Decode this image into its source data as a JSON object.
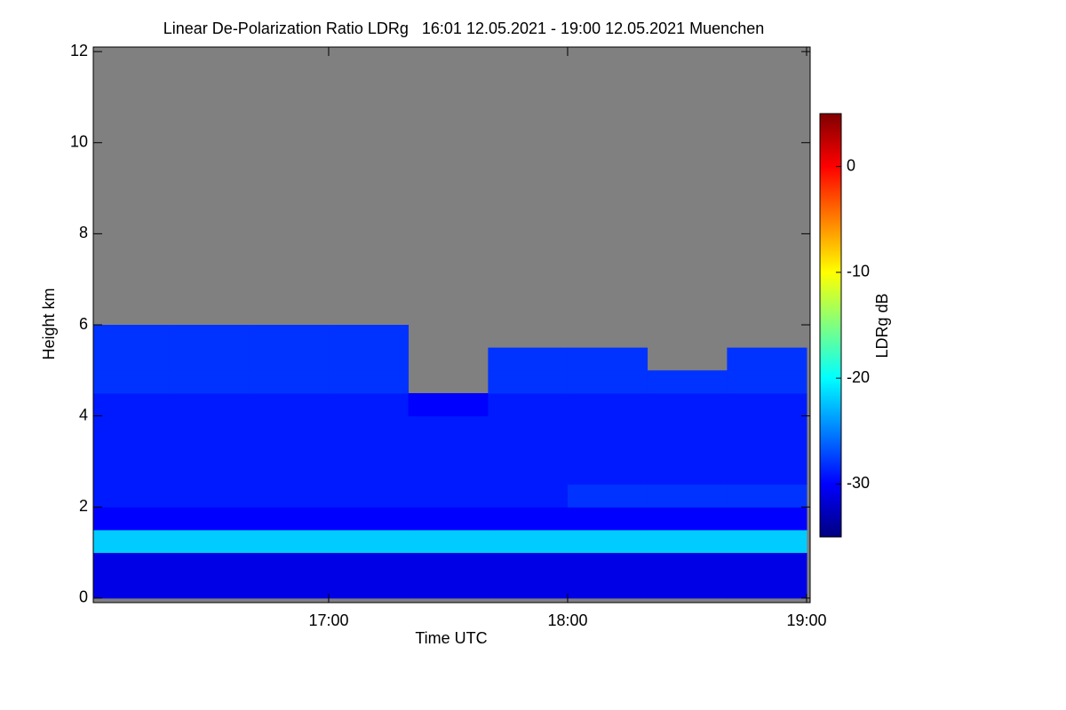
{
  "chart_data": {
    "type": "heatmap",
    "title": "Linear De-Polarization Ratio LDRg   16:01 12.05.2021 - 19:00 12.05.2021 Muenchen",
    "x_label": "Time UTC",
    "y_label": "Height km",
    "colorbar_label": "LDRg dB",
    "colormap": "jet",
    "background": "#808080",
    "x_edges": [
      16.015,
      16.333,
      16.667,
      17.0,
      17.333,
      17.667,
      18.0,
      18.333,
      18.667,
      19.0
    ],
    "y_edges": [
      0,
      0.5,
      1,
      1.5,
      2,
      2.5,
      3,
      3.5,
      4,
      4.5,
      5,
      5.5,
      6
    ],
    "z": [
      [
        -31,
        -31,
        -31,
        -31,
        -31,
        -31,
        -31,
        -31,
        -31
      ],
      [
        -31,
        -31,
        -31,
        -31,
        -31,
        -31,
        -31,
        -31,
        -31
      ],
      [
        -22,
        -22,
        -22,
        -22,
        -22,
        -22,
        -22,
        -22,
        -22
      ],
      [
        -30,
        -30,
        -30,
        -30,
        -30,
        -30,
        -30,
        -30,
        -30
      ],
      [
        -29,
        -29,
        -29,
        -29,
        -29,
        -29,
        -28,
        -28,
        -28
      ],
      [
        -29,
        -29,
        -29,
        -29,
        -29,
        -29,
        -29,
        -29,
        -29
      ],
      [
        -29,
        -29,
        -29,
        -29,
        -29,
        -29,
        -29,
        -29,
        -29
      ],
      [
        -29,
        -29,
        -29,
        -29,
        -29,
        -29,
        -29,
        -29,
        -29
      ],
      [
        -29,
        -29,
        -29,
        -29,
        -30,
        -29,
        -29,
        -29,
        -29
      ],
      [
        -28,
        -28,
        -28,
        -28,
        null,
        -28,
        -28,
        -28,
        -28
      ],
      [
        -28,
        -28,
        -28,
        -28,
        null,
        -28,
        -28,
        null,
        -28
      ],
      [
        -28,
        -28,
        -28,
        -28,
        null,
        null,
        null,
        null,
        null
      ]
    ],
    "xlim": [
      16.015,
      19.015
    ],
    "ylim": [
      -0.1,
      12.1
    ],
    "xticks": [
      {
        "value": 17,
        "label": "17:00"
      },
      {
        "value": 18,
        "label": "18:00"
      },
      {
        "value": 19,
        "label": "19:00"
      }
    ],
    "yticks": [
      0,
      2,
      4,
      6,
      8,
      10,
      12
    ],
    "clim": [
      -35,
      5
    ],
    "cticks": [
      0,
      -10,
      -20,
      -30
    ]
  }
}
